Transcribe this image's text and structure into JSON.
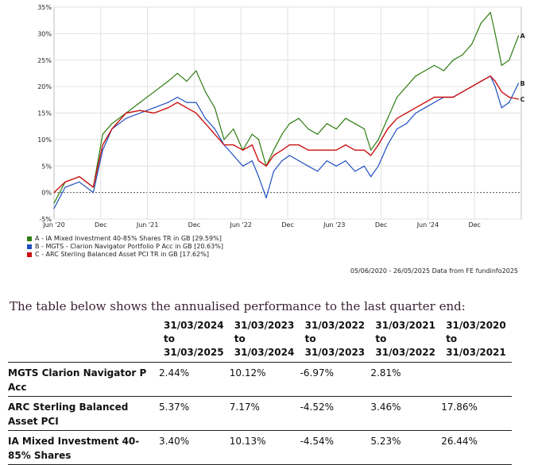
{
  "chart_data": {
    "type": "line",
    "title": "",
    "xlabel": "",
    "ylabel": "",
    "ylim": [
      -5,
      35
    ],
    "y_ticks": [
      "-5%",
      "0%",
      "5%",
      "10%",
      "15%",
      "20%",
      "25%",
      "30%",
      "35%"
    ],
    "x_ticks": [
      "Jun '20",
      "Dec",
      "Jun '21",
      "Dec",
      "Jun '22",
      "Dec",
      "Jun '23",
      "Dec",
      "Jun '24",
      "Dec"
    ],
    "grid": true,
    "legend_position": "bottom-left",
    "series": [
      {
        "name": "A - IA Mixed Investment 40-85% Shares TR in GB [29.59%]",
        "end_label": "A",
        "color": "#2e7d12",
        "x": [
          2020.43,
          2020.55,
          2020.7,
          2020.85,
          2020.95,
          2021.05,
          2021.2,
          2021.35,
          2021.5,
          2021.65,
          2021.75,
          2021.85,
          2021.95,
          2022.05,
          2022.15,
          2022.25,
          2022.35,
          2022.45,
          2022.55,
          2022.62,
          2022.7,
          2022.78,
          2022.87,
          2022.95,
          2023.05,
          2023.15,
          2023.25,
          2023.35,
          2023.45,
          2023.55,
          2023.65,
          2023.75,
          2023.82,
          2023.9,
          2024.0,
          2024.1,
          2024.2,
          2024.3,
          2024.4,
          2024.5,
          2024.6,
          2024.7,
          2024.8,
          2024.9,
          2025.0,
          2025.1,
          2025.15,
          2025.22,
          2025.3,
          2025.4
        ],
        "values": [
          -2,
          2,
          3,
          1,
          11,
          13,
          15,
          17,
          19,
          21,
          22.5,
          21,
          23,
          19,
          16,
          10,
          12,
          8,
          11,
          10,
          5,
          8,
          11,
          13,
          14,
          12,
          11,
          13,
          12,
          14,
          13,
          12,
          8,
          10,
          14,
          18,
          20,
          22,
          23,
          24,
          23,
          25,
          26,
          28,
          32,
          34,
          30,
          24,
          25,
          29.59
        ]
      },
      {
        "name": "B - MGTS - Clarion Navigator Portfolio P Acc in GB [20.63%]",
        "end_label": "B",
        "color": "#1f4fbf",
        "x": [
          2020.43,
          2020.55,
          2020.7,
          2020.85,
          2020.95,
          2021.05,
          2021.2,
          2021.35,
          2021.5,
          2021.65,
          2021.75,
          2021.85,
          2021.95,
          2022.05,
          2022.15,
          2022.25,
          2022.35,
          2022.45,
          2022.55,
          2022.62,
          2022.7,
          2022.78,
          2022.87,
          2022.95,
          2023.05,
          2023.15,
          2023.25,
          2023.35,
          2023.45,
          2023.55,
          2023.65,
          2023.75,
          2023.82,
          2023.9,
          2024.0,
          2024.1,
          2024.2,
          2024.3,
          2024.4,
          2024.5,
          2024.6,
          2024.7,
          2024.8,
          2024.9,
          2025.0,
          2025.1,
          2025.15,
          2025.22,
          2025.3,
          2025.4
        ],
        "values": [
          -3,
          1,
          2,
          0,
          8,
          12,
          14,
          15,
          16,
          17,
          18,
          17,
          17,
          14,
          12,
          9,
          7,
          5,
          6,
          3,
          -1,
          4,
          6,
          7,
          6,
          5,
          4,
          6,
          5,
          6,
          4,
          5,
          3,
          5,
          9,
          12,
          13,
          15,
          16,
          17,
          18,
          18,
          19,
          20,
          21,
          22,
          20,
          16,
          17,
          20.63
        ]
      },
      {
        "name": "C - ARC Sterling Balanced Asset PCI TR in GB [17.62%]",
        "end_label": "C",
        "color": "#cc1111",
        "x": [
          2020.43,
          2020.55,
          2020.7,
          2020.85,
          2020.95,
          2021.05,
          2021.2,
          2021.35,
          2021.5,
          2021.65,
          2021.75,
          2021.85,
          2021.95,
          2022.05,
          2022.15,
          2022.25,
          2022.35,
          2022.45,
          2022.55,
          2022.62,
          2022.7,
          2022.78,
          2022.87,
          2022.95,
          2023.05,
          2023.15,
          2023.25,
          2023.35,
          2023.45,
          2023.55,
          2023.65,
          2023.75,
          2023.82,
          2023.9,
          2024.0,
          2024.1,
          2024.2,
          2024.3,
          2024.4,
          2024.5,
          2024.6,
          2024.7,
          2024.8,
          2024.9,
          2025.0,
          2025.1,
          2025.15,
          2025.22,
          2025.3,
          2025.4
        ],
        "values": [
          0,
          2,
          3,
          1,
          9,
          12,
          15,
          15.5,
          15,
          16,
          17,
          16,
          15,
          13,
          11,
          9,
          9,
          8,
          9,
          6,
          5,
          7,
          8,
          9,
          9,
          8,
          8,
          8,
          8,
          9,
          8,
          8,
          7,
          9,
          12,
          14,
          15,
          16,
          17,
          18,
          18,
          18,
          19,
          20,
          21,
          22,
          21,
          19,
          18,
          17.62
        ]
      }
    ]
  },
  "legend": [
    {
      "label": "A - IA Mixed Investment 40-85% Shares TR in GB [29.59%]",
      "color": "#2e7d12"
    },
    {
      "label": "B - MGTS - Clarion Navigator Portfolio P Acc in GB [20.63%]",
      "color": "#1f4fbf"
    },
    {
      "label": "C - ARC Sterling Balanced Asset PCI TR in GB [17.62%]",
      "color": "#cc1111"
    }
  ],
  "source_text": "05/06/2020 - 26/05/2025 Data from FE fundinfo2025",
  "intro_text": "The table below shows the annualised performance to the last quarter end:",
  "table": {
    "headers": [
      [
        "31/03/2024 to",
        "31/03/2025"
      ],
      [
        "31/03/2023 to",
        "31/03/2024"
      ],
      [
        "31/03/2022 to",
        "31/03/2023"
      ],
      [
        "31/03/2021 to",
        "31/03/2022"
      ],
      [
        "31/03/2020 to",
        "31/03/2021"
      ]
    ],
    "rows": [
      {
        "name": "MGTS Clarion Navigator P Acc",
        "values": [
          "2.44%",
          "10.12%",
          "-6.97%",
          "2.81%",
          ""
        ]
      },
      {
        "name": "ARC Sterling Balanced Asset PCI",
        "values": [
          "5.37%",
          "7.17%",
          "-4.52%",
          "3.46%",
          "17.86%"
        ]
      },
      {
        "name": "IA Mixed Investment 40-85% Shares",
        "values": [
          "3.40%",
          "10.13%",
          "-4.54%",
          "5.23%",
          "26.44%"
        ]
      }
    ]
  }
}
